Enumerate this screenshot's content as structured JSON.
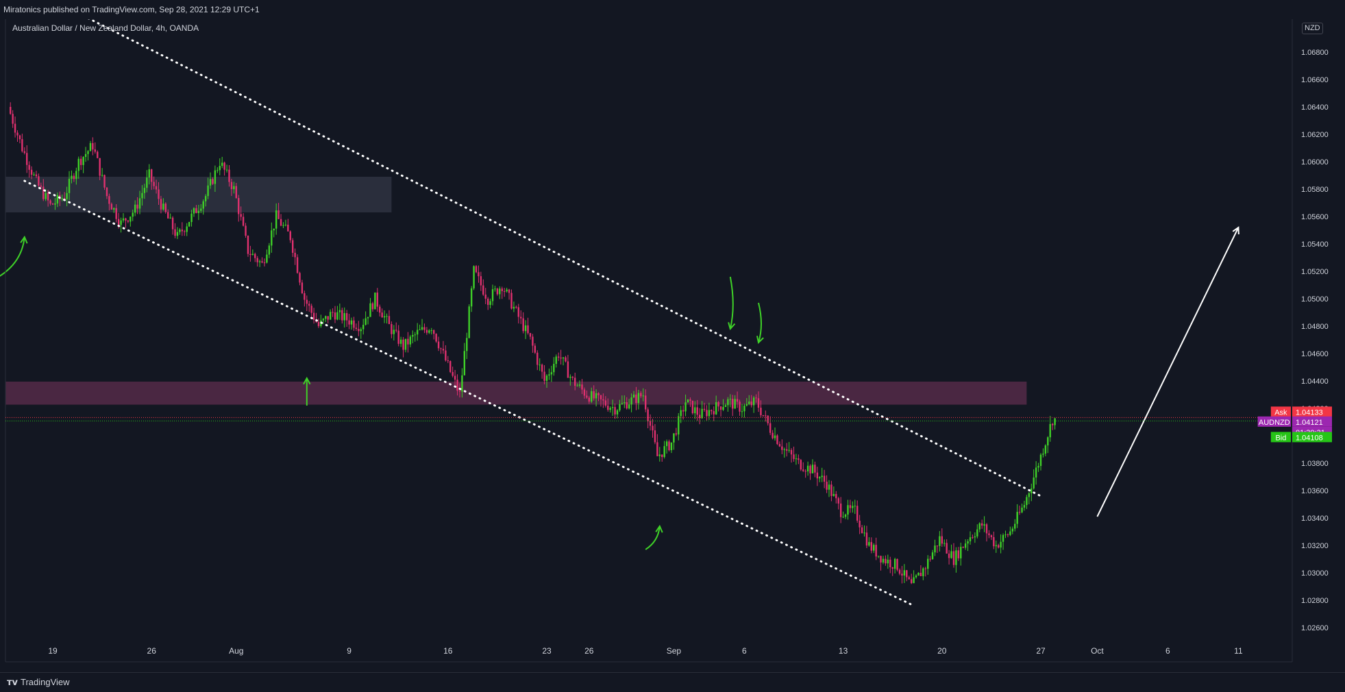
{
  "header": {
    "published": "Miratonics published on TradingView.com, Sep 28, 2021 12:29 UTC+1"
  },
  "footer": {
    "brand": "TradingView"
  },
  "colors": {
    "background": "#131722",
    "up": "#3fd128",
    "down": "#e0316f",
    "ask": "#f23645",
    "last": "#9c27b0",
    "bid": "#26c517"
  },
  "chart_data": {
    "type": "candlestick",
    "title": "Australian Dollar / New Zealand Dollar, 4h, OANDA",
    "currency": "NZD",
    "x_tick_labels": [
      "19",
      "26",
      "Aug",
      "9",
      "16",
      "23",
      "26",
      "Sep",
      "6",
      "13",
      "20",
      "27",
      "Oct",
      "6",
      "11"
    ],
    "y_tick_labels": [
      "1.06800",
      "1.06600",
      "1.06400",
      "1.06200",
      "1.06000",
      "1.05800",
      "1.05600",
      "1.05400",
      "1.05200",
      "1.05000",
      "1.04800",
      "1.04600",
      "1.04400",
      "1.04200",
      "1.04000",
      "1.03800",
      "1.03600",
      "1.03400",
      "1.03200",
      "1.03000",
      "1.02800",
      "1.02600"
    ],
    "ylim": [
      1.0249,
      1.0704
    ],
    "price_labels": {
      "ask": {
        "label": "Ask",
        "value": "1.04133"
      },
      "last": {
        "label": "AUDNZD",
        "value": "1.04121",
        "countdown": "01:30:31"
      },
      "bid": {
        "label": "Bid",
        "value": "1.04108"
      }
    },
    "price_path": [
      {
        "d": "2021-07-16",
        "p": 1.064
      },
      {
        "d": "2021-07-17",
        "p": 1.061
      },
      {
        "d": "2021-07-18",
        "p": 1.0585
      },
      {
        "d": "2021-07-19",
        "p": 1.0568
      },
      {
        "d": "2021-07-20",
        "p": 1.0575
      },
      {
        "d": "2021-07-21",
        "p": 1.06
      },
      {
        "d": "2021-07-22",
        "p": 1.0612
      },
      {
        "d": "2021-07-23",
        "p": 1.0575
      },
      {
        "d": "2021-07-24",
        "p": 1.0555
      },
      {
        "d": "2021-07-25",
        "p": 1.0565
      },
      {
        "d": "2021-07-26",
        "p": 1.059
      },
      {
        "d": "2021-07-27",
        "p": 1.0565
      },
      {
        "d": "2021-07-28",
        "p": 1.0545
      },
      {
        "d": "2021-07-29",
        "p": 1.056
      },
      {
        "d": "2021-07-30",
        "p": 1.0575
      },
      {
        "d": "2021-07-31",
        "p": 1.06
      },
      {
        "d": "2021-08-01",
        "p": 1.058
      },
      {
        "d": "2021-08-02",
        "p": 1.0535
      },
      {
        "d": "2021-08-03",
        "p": 1.0525
      },
      {
        "d": "2021-08-04",
        "p": 1.056
      },
      {
        "d": "2021-08-05",
        "p": 1.0545
      },
      {
        "d": "2021-08-06",
        "p": 1.05
      },
      {
        "d": "2021-08-07",
        "p": 1.048
      },
      {
        "d": "2021-08-08",
        "p": 1.049
      },
      {
        "d": "2021-08-09",
        "p": 1.0485
      },
      {
        "d": "2021-08-10",
        "p": 1.048
      },
      {
        "d": "2021-08-11",
        "p": 1.05
      },
      {
        "d": "2021-08-12",
        "p": 1.048
      },
      {
        "d": "2021-08-13",
        "p": 1.0465
      },
      {
        "d": "2021-08-14",
        "p": 1.0475
      },
      {
        "d": "2021-08-15",
        "p": 1.048
      },
      {
        "d": "2021-08-16",
        "p": 1.0455
      },
      {
        "d": "2021-08-17",
        "p": 1.043
      },
      {
        "d": "2021-08-18",
        "p": 1.052
      },
      {
        "d": "2021-08-19",
        "p": 1.05
      },
      {
        "d": "2021-08-20",
        "p": 1.051
      },
      {
        "d": "2021-08-21",
        "p": 1.049
      },
      {
        "d": "2021-08-22",
        "p": 1.047
      },
      {
        "d": "2021-08-23",
        "p": 1.044
      },
      {
        "d": "2021-08-24",
        "p": 1.046
      },
      {
        "d": "2021-08-25",
        "p": 1.044
      },
      {
        "d": "2021-08-26",
        "p": 1.043
      },
      {
        "d": "2021-08-27",
        "p": 1.0425
      },
      {
        "d": "2021-08-28",
        "p": 1.042
      },
      {
        "d": "2021-08-29",
        "p": 1.0425
      },
      {
        "d": "2021-08-30",
        "p": 1.043
      },
      {
        "d": "2021-08-31",
        "p": 1.0385
      },
      {
        "d": "2021-09-01",
        "p": 1.0395
      },
      {
        "d": "2021-09-02",
        "p": 1.0425
      },
      {
        "d": "2021-09-03",
        "p": 1.0415
      },
      {
        "d": "2021-09-04",
        "p": 1.042
      },
      {
        "d": "2021-09-05",
        "p": 1.0425
      },
      {
        "d": "2021-09-06",
        "p": 1.042
      },
      {
        "d": "2021-09-07",
        "p": 1.0425
      },
      {
        "d": "2021-09-08",
        "p": 1.0405
      },
      {
        "d": "2021-09-09",
        "p": 1.039
      },
      {
        "d": "2021-09-10",
        "p": 1.038
      },
      {
        "d": "2021-09-11",
        "p": 1.0375
      },
      {
        "d": "2021-09-12",
        "p": 1.0365
      },
      {
        "d": "2021-09-13",
        "p": 1.0345
      },
      {
        "d": "2021-09-14",
        "p": 1.0345
      },
      {
        "d": "2021-09-15",
        "p": 1.032
      },
      {
        "d": "2021-09-16",
        "p": 1.031
      },
      {
        "d": "2021-09-17",
        "p": 1.0305
      },
      {
        "d": "2021-09-18",
        "p": 1.029
      },
      {
        "d": "2021-09-19",
        "p": 1.0305
      },
      {
        "d": "2021-09-20",
        "p": 1.0325
      },
      {
        "d": "2021-09-21",
        "p": 1.031
      },
      {
        "d": "2021-09-22",
        "p": 1.0325
      },
      {
        "d": "2021-09-23",
        "p": 1.0335
      },
      {
        "d": "2021-09-24",
        "p": 1.032
      },
      {
        "d": "2021-09-25",
        "p": 1.033
      },
      {
        "d": "2021-09-26",
        "p": 1.035
      },
      {
        "d": "2021-09-27",
        "p": 1.038
      },
      {
        "d": "2021-09-28",
        "p": 1.0412
      }
    ],
    "zones": [
      {
        "from": "2021-07-14",
        "to": "2021-08-12",
        "low": 1.0563,
        "high": 1.0589,
        "color": "#2a2e3c"
      },
      {
        "from": "2021-07-14",
        "to": "2021-09-26",
        "low": 1.04227,
        "high": 1.04395,
        "color": "#4a2742"
      }
    ],
    "trendlines": [
      {
        "from": {
          "d": "2021-07-17",
          "p": 1.0586
        },
        "to": {
          "d": "2021-09-18",
          "p": 1.0276
        }
      },
      {
        "from": {
          "d": "2021-07-17",
          "p": 1.0728
        },
        "to": {
          "d": "2021-09-27",
          "p": 1.0356
        }
      }
    ],
    "arrows": [
      {
        "from": {
          "d": "2021-07-15",
          "p": 1.0515
        },
        "to": {
          "d": "2021-07-17",
          "p": 1.0545
        },
        "color": "#3fd128",
        "shape": "curve-up"
      },
      {
        "from": {
          "d": "2021-08-06",
          "p": 1.0422
        },
        "to": {
          "d": "2021-08-06",
          "p": 1.0442
        },
        "color": "#3fd128",
        "shape": "curve-up"
      },
      {
        "from": {
          "d": "2021-08-30",
          "p": 1.0317
        },
        "to": {
          "d": "2021-08-31",
          "p": 1.0334
        },
        "color": "#3fd128",
        "shape": "curve-up"
      },
      {
        "from": {
          "d": "2021-09-05",
          "p": 1.0516
        },
        "to": {
          "d": "2021-09-05",
          "p": 1.0478
        },
        "color": "#3fd128",
        "shape": "curve-down"
      },
      {
        "from": {
          "d": "2021-09-07",
          "p": 1.0497
        },
        "to": {
          "d": "2021-09-07",
          "p": 1.0468
        },
        "color": "#3fd128",
        "shape": "curve-down"
      },
      {
        "from": {
          "d": "2021-10-01",
          "p": 1.0341
        },
        "to": {
          "d": "2021-10-11",
          "p": 1.0552
        },
        "color": "#ffffff",
        "shape": "straight"
      }
    ]
  }
}
